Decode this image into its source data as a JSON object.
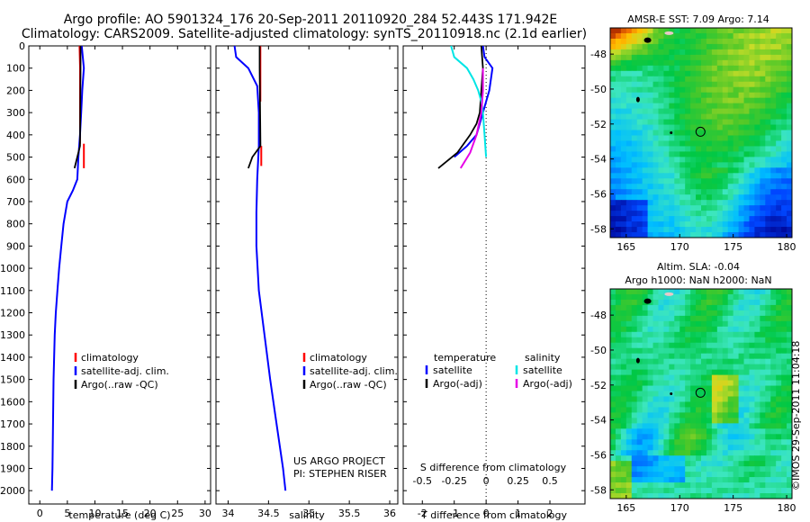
{
  "header": {
    "line1": "Argo profile: AO 5901324_176 20-Sep-2011 20110920_284 52.443S 171.942E",
    "line2": "Climatology: CARS2009. Satellite-adjusted climatology: synTS_20110918.nc (2.1d earlier)"
  },
  "colors": {
    "climatology": "#ff0000",
    "satellite": "#0000ff",
    "argo": "#000000",
    "satellite_salinity": "#00e5e5",
    "argo_salinity": "#e600e6"
  },
  "chart_data": [
    {
      "id": "temperature",
      "type": "line",
      "xlabel": "temperature (deg C)",
      "ylabel": "",
      "xlim": [
        -2,
        31
      ],
      "ylim": [
        2060,
        0
      ],
      "xticks": [
        0,
        5,
        10,
        15,
        20,
        25,
        30
      ],
      "yticks": [
        0,
        100,
        200,
        300,
        400,
        500,
        600,
        700,
        800,
        900,
        1000,
        1100,
        1200,
        1300,
        1400,
        1500,
        1600,
        1700,
        1800,
        1900,
        2000
      ],
      "series": [
        {
          "name": "climatology",
          "color": "#ff0000",
          "x": [
            7.2,
            7.3,
            7.3,
            7.3,
            7.3
          ],
          "y": [
            0,
            100,
            250,
            300,
            440
          ],
          "segments": [
            {
              "x": [
                8.0,
                8.0
              ],
              "y": [
                440,
                550
              ]
            }
          ]
        },
        {
          "name": "satellite-adj. clim.",
          "color": "#0000ff",
          "x": [
            7.6,
            7.8,
            8.0,
            7.7,
            7.5,
            7.3,
            7.0,
            6.8,
            6.0,
            5.0,
            4.3,
            3.9,
            3.5,
            3.2,
            2.9,
            2.7,
            2.5,
            2.4,
            2.3,
            2.2
          ],
          "y": [
            0,
            50,
            100,
            200,
            300,
            400,
            500,
            600,
            650,
            700,
            800,
            900,
            1000,
            1100,
            1200,
            1300,
            1500,
            1700,
            1900,
            2000
          ]
        },
        {
          "name": "Argo(..raw -QC)",
          "color": "#000000",
          "x": [
            7.4,
            7.4,
            7.3,
            6.8,
            6.3
          ],
          "y": [
            0,
            100,
            450,
            500,
            550
          ]
        }
      ],
      "legend": {
        "position": "bottom",
        "entries": [
          "climatology",
          "satellite-adj. clim.",
          "Argo(..raw -QC)"
        ]
      }
    },
    {
      "id": "salinity",
      "type": "line",
      "xlabel": "salinity",
      "ylabel": "",
      "xlim": [
        33.85,
        36.1
      ],
      "ylim": [
        2060,
        0
      ],
      "xticks": [
        34,
        34.5,
        35,
        35.5,
        36
      ],
      "series": [
        {
          "name": "climatology",
          "color": "#ff0000",
          "x": [
            34.4,
            34.4,
            34.4
          ],
          "y": [
            0,
            200,
            250
          ],
          "segments": [
            {
              "x": [
                34.41,
                34.41
              ],
              "y": [
                450,
                540
              ]
            }
          ]
        },
        {
          "name": "satellite-adj. clim.",
          "color": "#0000ff",
          "x": [
            34.08,
            34.1,
            34.25,
            34.36,
            34.38,
            34.38,
            34.36,
            34.35,
            34.35,
            34.38,
            34.45,
            34.52,
            34.58,
            34.64,
            34.68,
            34.71
          ],
          "y": [
            0,
            50,
            100,
            180,
            300,
            450,
            600,
            750,
            900,
            1100,
            1300,
            1500,
            1650,
            1800,
            1900,
            2000
          ]
        },
        {
          "name": "Argo(..raw -QC)",
          "color": "#000000",
          "x": [
            34.39,
            34.39,
            34.4,
            34.3,
            34.25
          ],
          "y": [
            0,
            100,
            450,
            500,
            550
          ]
        }
      ],
      "legend": {
        "position": "bottom",
        "entries": [
          "climatology",
          "satellite-adj. clim.",
          "Argo(..raw -QC)"
        ]
      },
      "annotation": [
        "US ARGO PROJECT",
        "PI: STEPHEN RISER"
      ]
    },
    {
      "id": "difference",
      "type": "line",
      "xlabel": "T difference from climatology",
      "x2label": "S difference from climatology",
      "xlim": [
        -2.6,
        3.1
      ],
      "ylim": [
        2060,
        0
      ],
      "xticks": [
        -2,
        -1,
        0,
        1,
        2
      ],
      "x2ticks": [
        -0.5,
        -0.25,
        0,
        0.25,
        0.5
      ],
      "series": [
        {
          "name": "temperature satellite",
          "color": "#0000ff",
          "x": [
            -0.1,
            -0.05,
            0.2,
            0.1,
            -0.1,
            -0.3,
            -0.6,
            -1.0
          ],
          "y": [
            0,
            50,
            100,
            200,
            300,
            400,
            450,
            500
          ]
        },
        {
          "name": "temperature Argo(-adj)",
          "color": "#000000",
          "x": [
            -0.15,
            -0.1,
            -0.15,
            -0.2,
            -0.3,
            -0.5,
            -0.9,
            -1.5
          ],
          "y": [
            0,
            100,
            200,
            300,
            350,
            400,
            480,
            550
          ]
        },
        {
          "name": "salinity satellite",
          "color": "#00e5e5",
          "x": [
            -1.1,
            -1.0,
            -0.6,
            -0.4,
            -0.25,
            -0.15,
            -0.1,
            -0.05,
            0.0
          ],
          "y": [
            0,
            50,
            100,
            150,
            200,
            250,
            300,
            400,
            500
          ]
        },
        {
          "name": "salinity Argo(-adj)",
          "color": "#e600e6",
          "x": [
            -0.1,
            -0.1,
            -0.15,
            -0.3,
            -0.5,
            -0.8
          ],
          "y": [
            100,
            200,
            300,
            400,
            480,
            550
          ]
        }
      ],
      "legend": {
        "position": "bottom",
        "temperature_label": "temperature",
        "salinity_label": "salinity",
        "temperature_entries": [
          "satellite",
          "Argo(-adj)"
        ],
        "salinity_entries": [
          "satellite",
          "Argo(-adj)"
        ]
      }
    }
  ],
  "maps": [
    {
      "id": "sst-map",
      "title": "AMSR-E SST: 7.09 Argo: 7.14",
      "xticks": [
        165,
        170,
        175,
        180
      ],
      "yticks": [
        -48,
        -50,
        -52,
        -54,
        -56,
        -58
      ],
      "lon_range": [
        163.5,
        180.5
      ],
      "lat_range": [
        -46.5,
        -58.5
      ],
      "marker": {
        "lon": 171.942,
        "lat": -52.443
      }
    },
    {
      "id": "sla-map",
      "title_line1": "Altim. SLA: -0.04",
      "title_line2": "Argo h1000: NaN h2000: NaN",
      "xticks": [
        165,
        170,
        175,
        180
      ],
      "yticks": [
        -48,
        -50,
        -52,
        -54,
        -56,
        -58
      ],
      "lon_range": [
        163.5,
        180.5
      ],
      "lat_range": [
        -46.5,
        -58.5
      ],
      "marker": {
        "lon": 171.942,
        "lat": -52.443
      }
    }
  ],
  "footer": {
    "stamp": "©IMOS 29-Sep-2011 11:04:18"
  }
}
